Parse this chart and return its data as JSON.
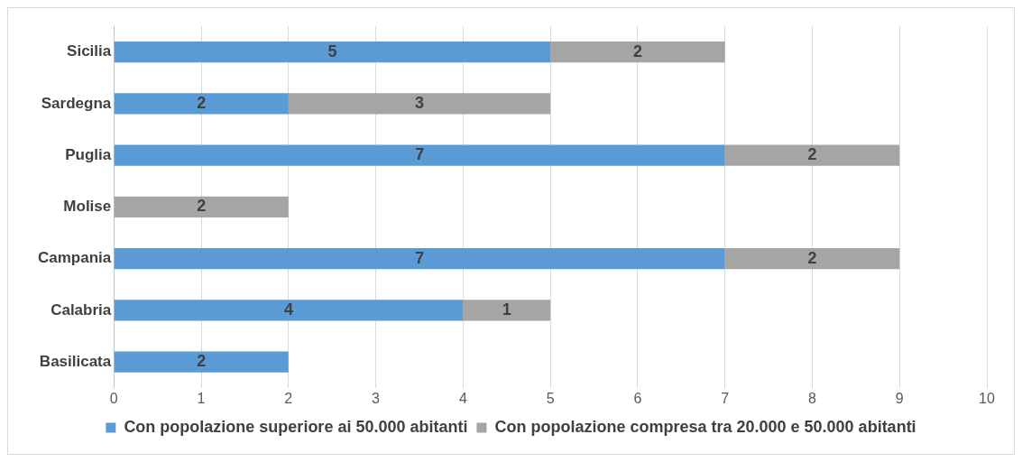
{
  "chart_data": {
    "type": "bar",
    "orientation": "horizontal",
    "stacked": true,
    "categories": [
      "Sicilia",
      "Sardegna",
      "Puglia",
      "Molise",
      "Campania",
      "Calabria",
      "Basilicata"
    ],
    "series": [
      {
        "name": "Con popolazione superiore ai 50.000 abitanti",
        "color": "#5b9bd5",
        "values": [
          5,
          2,
          7,
          null,
          7,
          4,
          2
        ]
      },
      {
        "name": "Con popolazione compresa tra 20.000 e 50.000 abitanti",
        "color": "#a5a5a5",
        "values": [
          2,
          3,
          2,
          2,
          2,
          1,
          null
        ]
      }
    ],
    "xlim": [
      0,
      10
    ],
    "xticks": [
      0,
      1,
      2,
      3,
      4,
      5,
      6,
      7,
      8,
      9,
      10
    ],
    "grid": "x",
    "legend": "bottom",
    "data_labels": true
  }
}
